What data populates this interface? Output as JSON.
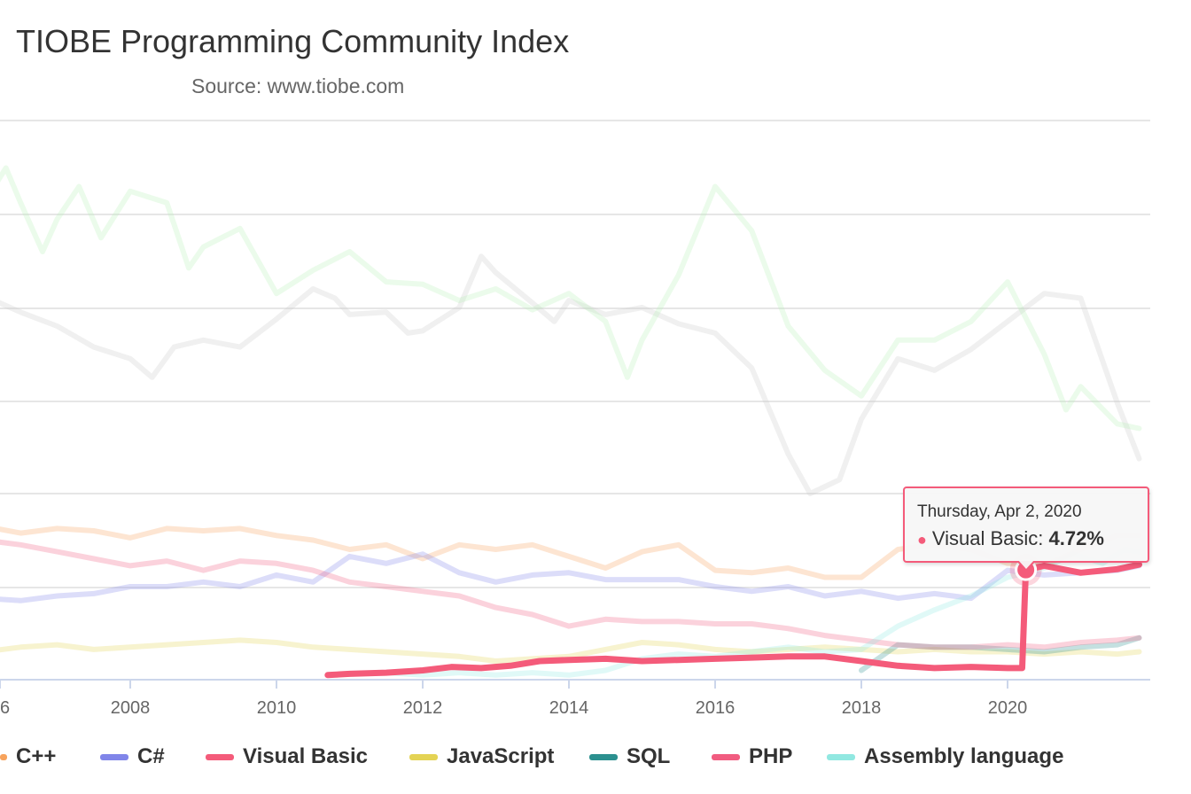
{
  "chart_data": {
    "type": "line",
    "title": "TIOBE Programming Community Index",
    "subtitle": "Source: www.tiobe.com",
    "x_axis": {
      "type": "datetime",
      "tick_labels": [
        "6",
        "2008",
        "2010",
        "2012",
        "2014",
        "2016",
        "2018",
        "2020"
      ]
    },
    "grid": true,
    "legend_position": "bottom",
    "series": [
      {
        "name": "C++",
        "color": "#f7a35c",
        "highlighted": false,
        "points": [
          [
            2006.0,
            6.6
          ],
          [
            2006.5,
            6.3
          ],
          [
            2007.0,
            6.5
          ],
          [
            2007.5,
            6.4
          ],
          [
            2008.0,
            6.1
          ],
          [
            2008.5,
            6.5
          ],
          [
            2009.0,
            6.4
          ],
          [
            2009.5,
            6.5
          ],
          [
            2010.0,
            6.2
          ],
          [
            2010.5,
            6.0
          ],
          [
            2011.0,
            5.6
          ],
          [
            2011.5,
            5.8
          ],
          [
            2012.0,
            5.2
          ],
          [
            2012.5,
            5.8
          ],
          [
            2013.0,
            5.6
          ],
          [
            2013.5,
            5.8
          ],
          [
            2014.0,
            5.3
          ],
          [
            2014.5,
            4.8
          ],
          [
            2015.0,
            5.5
          ],
          [
            2015.5,
            5.8
          ],
          [
            2016.0,
            4.7
          ],
          [
            2016.5,
            4.6
          ],
          [
            2017.0,
            4.8
          ],
          [
            2017.5,
            4.4
          ],
          [
            2018.0,
            4.4
          ],
          [
            2018.5,
            5.6
          ],
          [
            2019.0,
            5.8
          ],
          [
            2019.5,
            5.6
          ],
          [
            2020.0,
            5.0
          ],
          [
            2020.5,
            4.9
          ],
          [
            2021.0,
            5.6
          ],
          [
            2021.5,
            6.2
          ],
          [
            2021.8,
            6.2
          ]
        ]
      },
      {
        "name": "C#",
        "color": "#8085e9",
        "highlighted": false,
        "points": [
          [
            2006.0,
            3.5
          ],
          [
            2006.5,
            3.4
          ],
          [
            2007.0,
            3.6
          ],
          [
            2007.5,
            3.7
          ],
          [
            2008.0,
            4.0
          ],
          [
            2008.5,
            4.0
          ],
          [
            2009.0,
            4.2
          ],
          [
            2009.5,
            4.0
          ],
          [
            2010.0,
            4.5
          ],
          [
            2010.5,
            4.2
          ],
          [
            2011.0,
            5.3
          ],
          [
            2011.5,
            5.0
          ],
          [
            2012.0,
            5.4
          ],
          [
            2012.5,
            4.6
          ],
          [
            2013.0,
            4.2
          ],
          [
            2013.5,
            4.5
          ],
          [
            2014.0,
            4.6
          ],
          [
            2014.5,
            4.3
          ],
          [
            2015.0,
            4.3
          ],
          [
            2015.5,
            4.3
          ],
          [
            2016.0,
            4.0
          ],
          [
            2016.5,
            3.8
          ],
          [
            2017.0,
            4.0
          ],
          [
            2017.5,
            3.6
          ],
          [
            2018.0,
            3.8
          ],
          [
            2018.5,
            3.5
          ],
          [
            2019.0,
            3.7
          ],
          [
            2019.5,
            3.5
          ],
          [
            2020.0,
            4.7
          ],
          [
            2020.5,
            4.5
          ],
          [
            2021.0,
            4.6
          ],
          [
            2021.5,
            4.7
          ],
          [
            2021.8,
            4.9
          ]
        ]
      },
      {
        "name": "Visual Basic",
        "color": "#f45b7a",
        "highlighted": true,
        "points": [
          [
            2010.7,
            0.2
          ],
          [
            2011.0,
            0.25
          ],
          [
            2011.5,
            0.3
          ],
          [
            2012.0,
            0.4
          ],
          [
            2012.4,
            0.55
          ],
          [
            2012.8,
            0.5
          ],
          [
            2013.2,
            0.6
          ],
          [
            2013.6,
            0.8
          ],
          [
            2014.0,
            0.85
          ],
          [
            2014.5,
            0.9
          ],
          [
            2015.0,
            0.8
          ],
          [
            2015.5,
            0.85
          ],
          [
            2016.0,
            0.9
          ],
          [
            2016.5,
            0.95
          ],
          [
            2017.0,
            1.0
          ],
          [
            2017.5,
            1.0
          ],
          [
            2018.0,
            0.8
          ],
          [
            2018.5,
            0.6
          ],
          [
            2019.0,
            0.5
          ],
          [
            2019.5,
            0.55
          ],
          [
            2020.0,
            0.5
          ],
          [
            2020.2,
            0.5
          ],
          [
            2020.25,
            4.72
          ],
          [
            2020.5,
            4.9
          ],
          [
            2021.0,
            4.6
          ],
          [
            2021.5,
            4.75
          ],
          [
            2021.8,
            4.95
          ]
        ]
      },
      {
        "name": "JavaScript",
        "color": "#e4d354",
        "highlighted": false,
        "points": [
          [
            2006.0,
            1.2
          ],
          [
            2006.5,
            1.4
          ],
          [
            2007.0,
            1.5
          ],
          [
            2007.5,
            1.3
          ],
          [
            2008.0,
            1.4
          ],
          [
            2008.5,
            1.5
          ],
          [
            2009.0,
            1.6
          ],
          [
            2009.5,
            1.7
          ],
          [
            2010.0,
            1.6
          ],
          [
            2010.5,
            1.4
          ],
          [
            2011.0,
            1.3
          ],
          [
            2011.5,
            1.2
          ],
          [
            2012.0,
            1.1
          ],
          [
            2012.5,
            1.0
          ],
          [
            2013.0,
            0.8
          ],
          [
            2013.5,
            0.9
          ],
          [
            2014.0,
            1.0
          ],
          [
            2014.5,
            1.3
          ],
          [
            2015.0,
            1.6
          ],
          [
            2015.5,
            1.5
          ],
          [
            2016.0,
            1.3
          ],
          [
            2016.5,
            1.2
          ],
          [
            2017.0,
            1.3
          ],
          [
            2017.5,
            1.4
          ],
          [
            2018.0,
            1.3
          ],
          [
            2018.5,
            1.2
          ],
          [
            2019.0,
            1.3
          ],
          [
            2019.5,
            1.2
          ],
          [
            2020.0,
            1.2
          ],
          [
            2020.5,
            1.1
          ],
          [
            2021.0,
            1.2
          ],
          [
            2021.5,
            1.1
          ],
          [
            2021.8,
            1.2
          ]
        ]
      },
      {
        "name": "SQL",
        "color": "#2b908f",
        "highlighted": false,
        "points": [
          [
            2018.0,
            0.4
          ],
          [
            2018.5,
            1.5
          ],
          [
            2019.0,
            1.4
          ],
          [
            2019.5,
            1.4
          ],
          [
            2020.0,
            1.3
          ],
          [
            2020.5,
            1.2
          ],
          [
            2021.0,
            1.4
          ],
          [
            2021.5,
            1.5
          ],
          [
            2021.8,
            1.8
          ]
        ]
      },
      {
        "name": "PHP",
        "color": "#f15c80",
        "highlighted": false,
        "points": [
          [
            2006.0,
            6.0
          ],
          [
            2006.5,
            5.8
          ],
          [
            2007.0,
            5.5
          ],
          [
            2007.5,
            5.2
          ],
          [
            2008.0,
            4.9
          ],
          [
            2008.5,
            5.1
          ],
          [
            2009.0,
            4.7
          ],
          [
            2009.5,
            5.1
          ],
          [
            2010.0,
            5.0
          ],
          [
            2010.5,
            4.7
          ],
          [
            2011.0,
            4.2
          ],
          [
            2011.5,
            4.0
          ],
          [
            2012.0,
            3.8
          ],
          [
            2012.5,
            3.6
          ],
          [
            2013.0,
            3.1
          ],
          [
            2013.5,
            2.8
          ],
          [
            2014.0,
            2.3
          ],
          [
            2014.5,
            2.6
          ],
          [
            2015.0,
            2.5
          ],
          [
            2015.5,
            2.5
          ],
          [
            2016.0,
            2.4
          ],
          [
            2016.5,
            2.4
          ],
          [
            2017.0,
            2.2
          ],
          [
            2017.5,
            1.9
          ],
          [
            2018.0,
            1.7
          ],
          [
            2018.5,
            1.5
          ],
          [
            2019.0,
            1.4
          ],
          [
            2019.5,
            1.4
          ],
          [
            2020.0,
            1.5
          ],
          [
            2020.5,
            1.4
          ],
          [
            2021.0,
            1.6
          ],
          [
            2021.5,
            1.7
          ],
          [
            2021.8,
            1.8
          ]
        ]
      },
      {
        "name": "Assembly language",
        "color": "#91e8e1",
        "highlighted": false,
        "points": [
          [
            2011.5,
            0.3
          ],
          [
            2012.0,
            0.2
          ],
          [
            2012.5,
            0.3
          ],
          [
            2013.0,
            0.2
          ],
          [
            2013.5,
            0.3
          ],
          [
            2014.0,
            0.2
          ],
          [
            2014.5,
            0.4
          ],
          [
            2015.0,
            0.9
          ],
          [
            2015.5,
            1.1
          ],
          [
            2016.0,
            1.0
          ],
          [
            2016.5,
            1.2
          ],
          [
            2017.0,
            1.4
          ],
          [
            2017.5,
            1.2
          ],
          [
            2018.0,
            1.3
          ],
          [
            2018.5,
            2.3
          ],
          [
            2019.0,
            3.0
          ],
          [
            2019.5,
            3.6
          ],
          [
            2020.0,
            4.4
          ],
          [
            2020.5,
            4.8
          ],
          [
            2020.9,
            5.4
          ],
          [
            2021.3,
            5.0
          ],
          [
            2021.6,
            5.6
          ],
          [
            2021.8,
            5.5
          ]
        ]
      },
      {
        "name": "",
        "color": "#c8c8c8",
        "highlighted": false,
        "legend": false,
        "points": [
          [
            2006.0,
            16.5
          ],
          [
            2006.5,
            15.8
          ],
          [
            2007.0,
            15.2
          ],
          [
            2007.5,
            14.3
          ],
          [
            2008.0,
            13.8
          ],
          [
            2008.3,
            13.0
          ],
          [
            2008.6,
            14.3
          ],
          [
            2009.0,
            14.6
          ],
          [
            2009.5,
            14.3
          ],
          [
            2010.0,
            15.5
          ],
          [
            2010.5,
            16.8
          ],
          [
            2010.8,
            16.4
          ],
          [
            2011.0,
            15.7
          ],
          [
            2011.5,
            15.8
          ],
          [
            2011.8,
            14.9
          ],
          [
            2012.0,
            15.0
          ],
          [
            2012.5,
            16.0
          ],
          [
            2012.8,
            18.2
          ],
          [
            2013.0,
            17.5
          ],
          [
            2013.5,
            16.2
          ],
          [
            2013.8,
            15.4
          ],
          [
            2014.0,
            16.3
          ],
          [
            2014.5,
            15.7
          ],
          [
            2015.0,
            16.0
          ],
          [
            2015.5,
            15.3
          ],
          [
            2016.0,
            14.9
          ],
          [
            2016.5,
            13.4
          ],
          [
            2017.0,
            9.7
          ],
          [
            2017.3,
            8.0
          ],
          [
            2017.7,
            8.6
          ],
          [
            2018.0,
            11.2
          ],
          [
            2018.5,
            13.8
          ],
          [
            2019.0,
            13.3
          ],
          [
            2019.5,
            14.2
          ],
          [
            2020.0,
            15.4
          ],
          [
            2020.5,
            16.6
          ],
          [
            2021.0,
            16.4
          ],
          [
            2021.5,
            11.9
          ],
          [
            2021.8,
            9.5
          ]
        ]
      },
      {
        "name": "",
        "color": "#b7f2b7",
        "highlighted": false,
        "legend": false,
        "points": [
          [
            2006.0,
            20.5
          ],
          [
            2006.3,
            22.0
          ],
          [
            2006.5,
            20.5
          ],
          [
            2006.8,
            18.4
          ],
          [
            2007.0,
            19.8
          ],
          [
            2007.3,
            21.2
          ],
          [
            2007.6,
            19.0
          ],
          [
            2008.0,
            21.0
          ],
          [
            2008.5,
            20.5
          ],
          [
            2008.8,
            17.7
          ],
          [
            2009.0,
            18.6
          ],
          [
            2009.5,
            19.4
          ],
          [
            2010.0,
            16.6
          ],
          [
            2010.5,
            17.6
          ],
          [
            2011.0,
            18.4
          ],
          [
            2011.5,
            17.1
          ],
          [
            2012.0,
            17.0
          ],
          [
            2012.5,
            16.3
          ],
          [
            2013.0,
            16.8
          ],
          [
            2013.5,
            15.9
          ],
          [
            2014.0,
            16.6
          ],
          [
            2014.5,
            15.4
          ],
          [
            2014.8,
            13.0
          ],
          [
            2015.0,
            14.6
          ],
          [
            2015.5,
            17.4
          ],
          [
            2016.0,
            21.2
          ],
          [
            2016.5,
            19.3
          ],
          [
            2017.0,
            15.2
          ],
          [
            2017.5,
            13.3
          ],
          [
            2018.0,
            12.2
          ],
          [
            2018.5,
            14.6
          ],
          [
            2019.0,
            14.6
          ],
          [
            2019.5,
            15.4
          ],
          [
            2020.0,
            17.1
          ],
          [
            2020.5,
            14.0
          ],
          [
            2020.8,
            11.6
          ],
          [
            2021.0,
            12.6
          ],
          [
            2021.5,
            11.0
          ],
          [
            2021.8,
            10.8
          ]
        ]
      }
    ],
    "tooltip": {
      "date": "Thursday, Apr 2, 2020",
      "series": "Visual Basic",
      "value": "4.72%"
    }
  },
  "tooltip": {
    "date": "Thursday, Apr 2, 2020",
    "series_label": "Visual Basic: ",
    "value": "4.72%",
    "marker": "●"
  },
  "legend": [
    "C++",
    "C#",
    "Visual Basic",
    "JavaScript",
    "SQL",
    "PHP",
    "Assembly language"
  ]
}
